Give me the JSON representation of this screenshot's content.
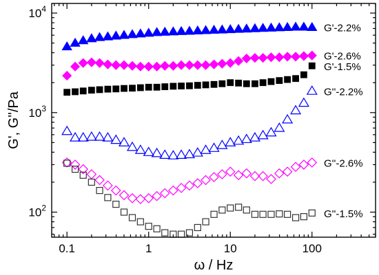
{
  "chart_data": {
    "type": "scatter",
    "xlabel": "ω / Hz",
    "ylabel": "G', G''/Pa",
    "xscale": "log",
    "yscale": "log",
    "xlim": [
      0.065,
      600
    ],
    "ylim": [
      56,
      12500
    ],
    "x_ticks": [
      {
        "value": 0.1,
        "label": "0.1"
      },
      {
        "value": 1,
        "label": "1"
      },
      {
        "value": 10,
        "label": "10"
      },
      {
        "value": 100,
        "label": "100"
      }
    ],
    "y_ticks": [
      {
        "value": 100,
        "base": "10",
        "exp": "2"
      },
      {
        "value": 1000,
        "base": "10",
        "exp": "3"
      },
      {
        "value": 10000,
        "base": "10",
        "exp": "4"
      }
    ],
    "series": [
      {
        "name": "G'-2.2%",
        "marker": "triangle",
        "filled": true,
        "color": "#0000ff",
        "x": [
          0.1,
          0.126,
          0.158,
          0.2,
          0.251,
          0.316,
          0.398,
          0.5,
          0.631,
          0.794,
          1,
          1.26,
          1.58,
          2,
          2.51,
          3.16,
          3.98,
          5,
          6.31,
          7.94,
          10,
          12.6,
          15.8,
          20,
          25.1,
          31.6,
          39.8,
          50,
          63.1,
          79.4,
          100
        ],
        "y": [
          4600,
          5000,
          5300,
          5550,
          5700,
          5800,
          5900,
          6000,
          6100,
          6200,
          6300,
          6400,
          6450,
          6500,
          6550,
          6600,
          6650,
          6700,
          6750,
          6800,
          6850,
          6900,
          6950,
          7000,
          7050,
          7100,
          7150,
          7200,
          7250,
          7250,
          7200
        ]
      },
      {
        "name": "G'-2.6%",
        "marker": "diamond",
        "filled": true,
        "color": "#ff00ff",
        "x": [
          0.1,
          0.126,
          0.158,
          0.2,
          0.251,
          0.316,
          0.398,
          0.5,
          0.631,
          0.794,
          1,
          1.26,
          1.58,
          2,
          2.51,
          3.16,
          3.98,
          5,
          6.31,
          7.94,
          10,
          12.6,
          15.8,
          20,
          25.1,
          31.6,
          39.8,
          50,
          63.1,
          79.4,
          100
        ],
        "y": [
          2350,
          2900,
          3150,
          3200,
          3150,
          3050,
          3000,
          3000,
          2950,
          2900,
          2900,
          2900,
          2950,
          2950,
          3000,
          3000,
          3000,
          3000,
          3050,
          3100,
          3150,
          3300,
          3500,
          3550,
          3550,
          3600,
          3600,
          3650,
          3650,
          3700,
          3750
        ]
      },
      {
        "name": "G'-1.5%",
        "marker": "square",
        "filled": true,
        "color": "#000000",
        "x": [
          0.1,
          0.126,
          0.158,
          0.2,
          0.251,
          0.316,
          0.398,
          0.5,
          0.631,
          0.794,
          1,
          1.26,
          1.58,
          2,
          2.51,
          3.16,
          3.98,
          5,
          6.31,
          7.94,
          10,
          12.6,
          15.8,
          20,
          25.1,
          31.6,
          39.8,
          50,
          63.1,
          79.4,
          100
        ],
        "y": [
          1600,
          1620,
          1650,
          1680,
          1700,
          1720,
          1730,
          1750,
          1760,
          1780,
          1800,
          1800,
          1820,
          1840,
          1850,
          1860,
          1880,
          1900,
          1920,
          1950,
          2000,
          1980,
          1950,
          1950,
          2000,
          2050,
          2100,
          2150,
          2200,
          2400,
          2950
        ]
      },
      {
        "name": "G''-2.2%",
        "marker": "triangle",
        "filled": false,
        "color": "#0000ff",
        "x": [
          0.1,
          0.126,
          0.158,
          0.2,
          0.251,
          0.316,
          0.398,
          0.5,
          0.631,
          0.794,
          1,
          1.26,
          1.58,
          2,
          2.51,
          3.16,
          3.98,
          5,
          6.31,
          7.94,
          10,
          12.6,
          15.8,
          20,
          25.1,
          31.6,
          39.8,
          50,
          63.1,
          79.4,
          100
        ],
        "y": [
          650,
          560,
          560,
          570,
          570,
          560,
          530,
          500,
          450,
          420,
          400,
          390,
          375,
          370,
          375,
          380,
          395,
          420,
          440,
          470,
          500,
          520,
          540,
          560,
          590,
          630,
          700,
          850,
          1050,
          1250,
          1650
        ]
      },
      {
        "name": "G''-2.6%",
        "marker": "diamond",
        "filled": false,
        "color": "#ff00ff",
        "x": [
          0.1,
          0.126,
          0.158,
          0.2,
          0.251,
          0.316,
          0.398,
          0.5,
          0.631,
          0.794,
          1,
          1.26,
          1.58,
          2,
          2.51,
          3.16,
          3.98,
          5,
          6.31,
          7.94,
          10,
          12.6,
          15.8,
          20,
          25.1,
          31.6,
          39.8,
          50,
          63.1,
          79.4,
          100
        ],
        "y": [
          315,
          300,
          270,
          240,
          210,
          185,
          165,
          148,
          138,
          135,
          138,
          145,
          155,
          165,
          175,
          185,
          195,
          210,
          225,
          240,
          255,
          235,
          245,
          230,
          230,
          215,
          245,
          255,
          285,
          300,
          315
        ]
      },
      {
        "name": "G''-1.5%",
        "marker": "square",
        "filled": false,
        "color": "#333333",
        "x": [
          0.1,
          0.126,
          0.158,
          0.2,
          0.251,
          0.316,
          0.398,
          0.5,
          0.631,
          0.794,
          1,
          1.26,
          1.58,
          2,
          2.51,
          3.16,
          3.98,
          5,
          6.31,
          7.94,
          10,
          12.6,
          15.8,
          20,
          25.1,
          31.6,
          39.8,
          50,
          63.1,
          79.4,
          100
        ],
        "y": [
          310,
          270,
          235,
          200,
          165,
          140,
          120,
          100,
          88,
          80,
          72,
          68,
          62,
          60,
          60,
          62,
          70,
          80,
          95,
          105,
          110,
          112,
          105,
          95,
          95,
          95,
          96,
          95,
          88,
          90,
          98
        ]
      }
    ]
  }
}
